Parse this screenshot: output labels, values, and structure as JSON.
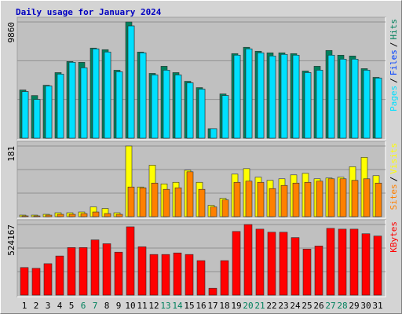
{
  "chart_data": {
    "type": "bar",
    "title": "Daily usage for January 2024",
    "categories": [
      "1",
      "2",
      "3",
      "4",
      "5",
      "6",
      "7",
      "8",
      "9",
      "10",
      "11",
      "12",
      "13",
      "14",
      "15",
      "16",
      "17",
      "18",
      "19",
      "20",
      "21",
      "22",
      "23",
      "24",
      "25",
      "26",
      "27",
      "28",
      "29",
      "30",
      "31"
    ],
    "category_colors": [
      "#000000",
      "#000000",
      "#000000",
      "#000000",
      "#000000",
      "#00805c",
      "#00805c",
      "#000000",
      "#000000",
      "#000000",
      "#000000",
      "#000000",
      "#00805c",
      "#00805c",
      "#000000",
      "#000000",
      "#000000",
      "#000000",
      "#000000",
      "#00805c",
      "#00805c",
      "#000000",
      "#000000",
      "#000000",
      "#000000",
      "#000000",
      "#00805c",
      "#00805c",
      "#000000",
      "#000000",
      "#000000"
    ],
    "legend_separator": "/",
    "panels": [
      {
        "ylim": [
          0,
          9860
        ],
        "yticks": [
          9860
        ],
        "grid": true,
        "series": [
          {
            "name": "Hits",
            "color": "#00805c",
            "values": [
              4091,
              3622,
              4494,
              5567,
              6506,
              6439,
              7646,
              7512,
              5768,
              9860,
              7311,
              5500,
              6104,
              5567,
              4829,
              4293,
              805,
              3756,
              7177,
              7713,
              7378,
              7244,
              7244,
              7177,
              5701,
              6104,
              7445,
              7043,
              6976,
              5902,
              5165
            ]
          },
          {
            "name": "Files",
            "color": "#0040ff",
            "values": [
              3957,
              3287,
              4427,
              5433,
              6439,
              5969,
              7579,
              7311,
              5634,
              9524,
              7244,
              5366,
              5768,
              5366,
              4695,
              4159,
              805,
              3622,
              7043,
              7579,
              7244,
              6976,
              7110,
              7043,
              5567,
              5768,
              7043,
              6707,
              6707,
              5768,
              5098
            ]
          },
          {
            "name": "Pages",
            "color": "#00e0ff",
            "values": [
              3957,
              3287,
              4427,
              5433,
              6439,
              5969,
              7579,
              7311,
              5634,
              9524,
              7244,
              5366,
              5768,
              5366,
              4695,
              4159,
              805,
              3622,
              7043,
              7579,
              7244,
              6976,
              7110,
              7043,
              5567,
              5768,
              7043,
              6707,
              6707,
              5768,
              5098
            ]
          }
        ]
      },
      {
        "ylim": [
          0,
          181
        ],
        "yticks": [
          181
        ],
        "grid": true,
        "series": [
          {
            "name": "Visits",
            "color": "#ffff00",
            "values": [
              4,
              4,
              6,
              10,
              10,
              12,
              25,
              21,
              10,
              181,
              76,
              132,
              84,
              88,
              119,
              88,
              29,
              47,
              109,
              123,
              101,
              93,
              97,
              107,
              111,
              97,
              99,
              101,
              128,
              152,
              105
            ]
          },
          {
            "name": "Sites",
            "color": "#ff8000",
            "values": [
              2,
              2,
              4,
              6,
              6,
              8,
              12,
              8,
              6,
              76,
              74,
              86,
              70,
              74,
              115,
              70,
              25,
              43,
              88,
              91,
              88,
              72,
              80,
              86,
              88,
              91,
              97,
              97,
              93,
              97,
              86
            ]
          }
        ]
      },
      {
        "ylim": [
          0,
          524167
        ],
        "yticks": [
          524167
        ],
        "grid": true,
        "series": [
          {
            "name": "KBytes",
            "color": "#ff0000",
            "values": [
              205110,
              199412,
              233597,
              290570,
              353240,
              353240,
              410222,
              381735,
              319060,
              507077,
              358937,
              301967,
              301967,
              313362,
              301967,
              256387,
              51277,
              256387,
              472892,
              524167,
              489982,
              467192,
              467192,
              427315,
              341850,
              364642,
              495682,
              489982,
              489982,
              455800,
              438706
            ]
          }
        ]
      }
    ]
  }
}
